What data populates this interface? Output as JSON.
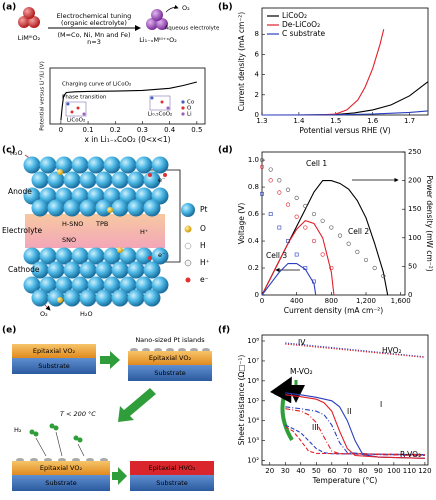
{
  "panels": {
    "a": {
      "label": "(a)",
      "reactant": "LiMᴵᴵᴵO₂",
      "process": "Electrochemical tuning",
      "medium": "(organic electrolyte)",
      "metals": "(M=Co, Ni, Mn and Fe)",
      "n": "n=3",
      "gas": "O₂",
      "product": "Li₁₋ₓMᴵᴵᴵ⁺ˣO₂",
      "product_medium": "Aqueous electrolyte",
      "phase_left": "LiCoO₂",
      "phase_right": "Li₀.₅CoO₂",
      "atoms": [
        "Co",
        "O",
        "Li"
      ]
    },
    "b": {
      "label": "(b)"
    },
    "c": {
      "label": "(c)",
      "water_in": "H₂O",
      "anode": "Anode",
      "electrolyte": "Electrolyte",
      "cathode": "Cathode",
      "h_sno": "H-SNO",
      "tpb": "TPB",
      "sno": "SNO",
      "proton": "H⁺",
      "electron_top": "e⁻",
      "electron_bottom": "e⁻",
      "oxygen": "O₂",
      "water_out": "H₂O",
      "legend": [
        "Pt",
        "O",
        "H",
        "H⁺",
        "e⁻"
      ]
    },
    "d": {
      "label": "(d)"
    },
    "e": {
      "label": "(e)",
      "film_1": "Epitaxial VO₂",
      "substrate_1": "Substrate",
      "pt_islands": "Nano-sized Pt islands",
      "film_2": "Epitaxial VO₂",
      "substrate_2": "Substrate",
      "temperature": "T < 200 °C",
      "hydrogen": "H₂",
      "film_3": "Epitaxial VO₂",
      "substrate_3": "Substrate",
      "film_4": "Epitaxial HVO₂",
      "substrate_4": "Substrate"
    },
    "f": {
      "label": "(f)"
    }
  },
  "chart_data": [
    {
      "type": "line",
      "xlabel": "x in Li₁₋ₓCoO₂ (0<x<1)",
      "ylabel": "Potential versus Li⁺/Li (V)",
      "xlim": [
        -0.04,
        0.53
      ],
      "xticks": [
        0,
        0.1,
        0.2,
        0.3,
        0.4,
        0.5
      ],
      "ylim": [
        3.0,
        4.6
      ],
      "annotations": [
        "Charging curve of LiCoO₂",
        "Phase transition"
      ],
      "series": [
        {
          "color": "#000000",
          "x": [
            0,
            0.005,
            0.01,
            0.02,
            0.05,
            0.1,
            0.2,
            0.3,
            0.4,
            0.45,
            0.5
          ],
          "values": [
            3.1,
            3.5,
            3.8,
            3.9,
            3.92,
            3.93,
            3.94,
            3.96,
            4.02,
            4.1,
            4.2
          ]
        }
      ]
    },
    {
      "type": "line",
      "xlabel": "Potential versus RHE (V)",
      "ylabel": "Current density (mA cm⁻²)",
      "xlim": [
        1.3,
        1.75
      ],
      "xticks": [
        1.3,
        1.4,
        1.5,
        1.6,
        1.7
      ],
      "ylim": [
        0,
        10.6
      ],
      "yticks": [
        0,
        2,
        4,
        6,
        8
      ],
      "legend": "upper left",
      "series": [
        {
          "name": "LiCoO₂",
          "color": "#000000",
          "x": [
            1.3,
            1.4,
            1.5,
            1.55,
            1.6,
            1.65,
            1.7,
            1.75
          ],
          "values": [
            0,
            0,
            0.05,
            0.2,
            0.5,
            1.0,
            1.9,
            3.3
          ]
        },
        {
          "name": "De-LiCoO₂",
          "color": "#e0202a",
          "x": [
            1.3,
            1.45,
            1.5,
            1.53,
            1.56,
            1.58,
            1.6,
            1.62,
            1.63
          ],
          "values": [
            0,
            0,
            0.1,
            0.5,
            1.5,
            2.8,
            4.6,
            7,
            8.5
          ]
        },
        {
          "name": "C substrate",
          "color": "#2a3fbf",
          "x": [
            1.3,
            1.5,
            1.6,
            1.7,
            1.75
          ],
          "values": [
            0,
            0.02,
            0.1,
            0.25,
            0.4
          ]
        }
      ]
    },
    {
      "type": "line",
      "xlabel": "Current density (mA cm⁻²)",
      "ylabel": "Voltage (V)",
      "y2label": "Power density (mW cm⁻²)",
      "xlim": [
        0,
        1650
      ],
      "xticks": [
        0,
        400,
        800,
        {
          "value": 1200,
          "label": "1,200"
        },
        {
          "value": 1600,
          "label": "1,600"
        }
      ],
      "ylim": [
        0,
        1.06
      ],
      "yticks": [
        0,
        0.2,
        0.4,
        0.6,
        0.8,
        {
          "value": 1,
          "label": "1.0"
        }
      ],
      "y2lim": [
        0,
        250
      ],
      "y2ticks": [
        0,
        50,
        100,
        150,
        200,
        250
      ],
      "legend": "inline",
      "series": [
        {
          "name": "Cell 1",
          "color": "#000000",
          "axis": "y2",
          "x": [
            0,
            100,
            200,
            300,
            400,
            500,
            600,
            700,
            800,
            900,
            1000,
            1100,
            1200,
            1300,
            1400,
            1450
          ],
          "values": [
            0,
            30,
            60,
            90,
            120,
            150,
            180,
            200,
            200,
            195,
            185,
            165,
            135,
            90,
            40,
            0
          ]
        },
        {
          "color": "#555555",
          "marker": "circle",
          "x": [
            0,
            100,
            200,
            300,
            400,
            500,
            600,
            700,
            800,
            900,
            1000,
            1100,
            1200,
            1300,
            1400
          ],
          "values": [
            1.0,
            0.93,
            0.85,
            0.78,
            0.72,
            0.66,
            0.6,
            0.55,
            0.5,
            0.44,
            0.38,
            0.32,
            0.26,
            0.2,
            0.14
          ]
        },
        {
          "name": "Cell 2",
          "color": "#e0202a",
          "axis": "y2",
          "x": [
            0,
            100,
            200,
            300,
            400,
            500,
            600,
            700,
            800,
            830
          ],
          "values": [
            0,
            30,
            60,
            90,
            115,
            130,
            125,
            100,
            40,
            0
          ]
        },
        {
          "color": "#e0202a",
          "marker": "circle",
          "x": [
            0,
            100,
            200,
            300,
            400,
            500,
            600,
            700,
            800
          ],
          "values": [
            0.95,
            0.85,
            0.76,
            0.67,
            0.58,
            0.5,
            0.4,
            0.3,
            0.2
          ]
        },
        {
          "name": "Cell 3",
          "color": "#2a3fbf",
          "axis": "y2",
          "x": [
            0,
            100,
            200,
            300,
            400,
            500,
            600,
            620
          ],
          "values": [
            0,
            20,
            40,
            55,
            55,
            45,
            20,
            0
          ]
        },
        {
          "color": "#2a3fbf",
          "marker": "square",
          "x": [
            0,
            100,
            200,
            300,
            400,
            500,
            600
          ],
          "values": [
            0.75,
            0.6,
            0.5,
            0.4,
            0.3,
            0.2,
            0.1
          ]
        }
      ]
    },
    {
      "type": "line",
      "xlabel": "Temperature (°C)",
      "ylabel": "Sheet resistance (Ω□⁻¹)",
      "yscale": "log",
      "xlim": [
        15,
        122
      ],
      "xticks": [
        20,
        30,
        40,
        50,
        60,
        70,
        80,
        90,
        100,
        110,
        120
      ],
      "ylim": [
        60,
        200000000
      ],
      "yticks": [
        {
          "value": 100,
          "label": "10²"
        },
        {
          "value": 1000,
          "label": "10³"
        },
        {
          "value": 10000,
          "label": "10⁴"
        },
        {
          "value": 100000,
          "label": "10⁵"
        },
        {
          "value": 1000000,
          "label": "10⁶"
        },
        {
          "value": 10000000,
          "label": "10⁷"
        },
        {
          "value": 100000000,
          "label": "10⁸"
        }
      ],
      "legend": "inline",
      "annotations": [
        "HVO₂",
        "M-VO₂",
        "R-VO₂"
      ],
      "series": [
        {
          "name": "IV",
          "color": "#2a3fbf",
          "dash": "dotted",
          "x": [
            30,
            120
          ],
          "values": [
            80000000,
            16000000
          ]
        },
        {
          "color": "#e0202a",
          "dash": "dotted",
          "x": [
            30,
            120
          ],
          "values": [
            70000000,
            15000000
          ]
        },
        {
          "name": "I",
          "color": "#2a3fbf",
          "x": [
            30,
            40,
            50,
            60,
            65,
            70,
            75,
            80,
            90,
            120
          ],
          "values": [
            250000,
            200000,
            150000,
            100000,
            50000,
            10000,
            1000,
            200,
            150,
            130
          ]
        },
        {
          "color": "#e0202a",
          "x": [
            30,
            40,
            50,
            55,
            60,
            65,
            70,
            75,
            90,
            120
          ],
          "values": [
            200000,
            160000,
            120000,
            80000,
            30000,
            3000,
            400,
            180,
            150,
            130
          ]
        },
        {
          "name": "II",
          "color": "#2a3fbf",
          "dash": "dashdot",
          "x": [
            30,
            40,
            50,
            55,
            60,
            65,
            70,
            90,
            120
          ],
          "values": [
            50000,
            40000,
            30000,
            20000,
            6000,
            800,
            250,
            200,
            180
          ]
        },
        {
          "color": "#e0202a",
          "dash": "dashdot",
          "x": [
            30,
            40,
            45,
            50,
            55,
            60,
            65,
            90,
            120
          ],
          "values": [
            40000,
            30000,
            20000,
            8000,
            1500,
            300,
            220,
            200,
            180
          ]
        },
        {
          "name": "III",
          "color": "#2a3fbf",
          "dash": "dashed",
          "x": [
            30,
            35,
            40,
            45,
            50,
            55,
            60,
            120
          ],
          "values": [
            6000,
            4000,
            2500,
            1000,
            400,
            250,
            220,
            200
          ]
        },
        {
          "color": "#e0202a",
          "dash": "dashed",
          "x": [
            30,
            35,
            40,
            45,
            50,
            120
          ],
          "values": [
            5000,
            3000,
            1000,
            300,
            230,
            200
          ]
        }
      ]
    }
  ]
}
